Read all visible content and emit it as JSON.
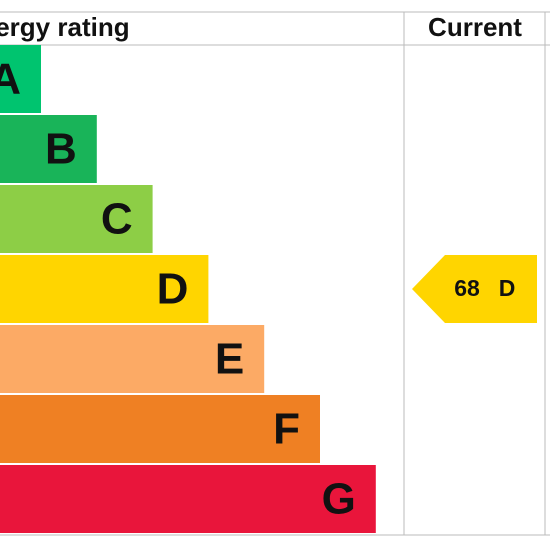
{
  "header": {
    "title": "Energy rating",
    "current": "Current"
  },
  "bands": [
    {
      "letter": "A",
      "color": "#00c46f"
    },
    {
      "letter": "B",
      "color": "#19b459"
    },
    {
      "letter": "C",
      "color": "#8dce46"
    },
    {
      "letter": "D",
      "color": "#ffd500"
    },
    {
      "letter": "E",
      "color": "#fcaa65"
    },
    {
      "letter": "F",
      "color": "#ef8023"
    },
    {
      "letter": "G",
      "color": "#e9153b"
    }
  ],
  "current": {
    "value": "68",
    "band": "D",
    "color": "#ffd500"
  }
}
